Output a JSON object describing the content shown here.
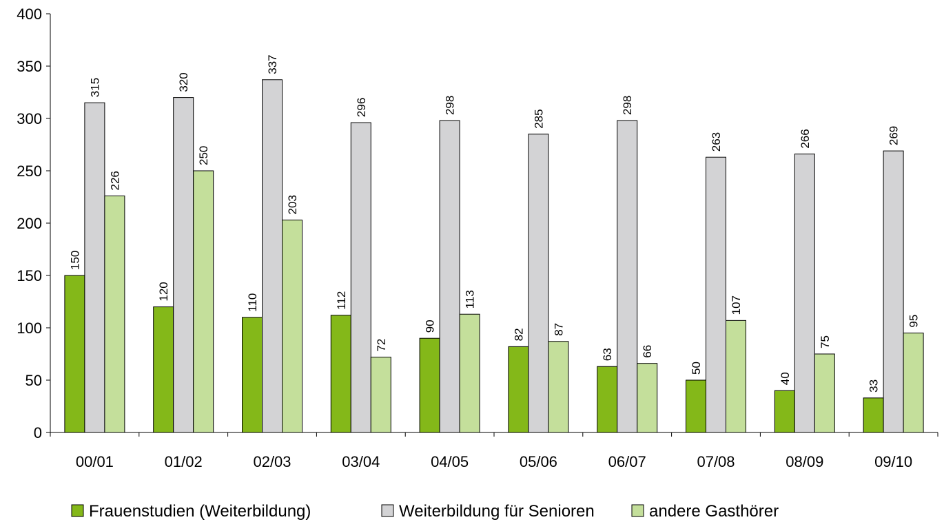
{
  "chart_data": {
    "type": "bar",
    "title": "",
    "xlabel": "",
    "ylabel": "",
    "categories": [
      "00/01",
      "01/02",
      "02/03",
      "03/04",
      "04/05",
      "05/06",
      "06/07",
      "07/08",
      "08/09",
      "09/10"
    ],
    "series": [
      {
        "name": "Frauenstudien (Weiterbildung)",
        "color": "#84b819",
        "values": [
          150,
          120,
          110,
          112,
          90,
          82,
          63,
          50,
          40,
          33
        ]
      },
      {
        "name": "Weiterbildung für Senioren",
        "color": "#d3d3d5",
        "values": [
          315,
          320,
          337,
          296,
          298,
          285,
          298,
          263,
          266,
          269
        ]
      },
      {
        "name": "andere Gasthörer",
        "color": "#c4df9b",
        "values": [
          226,
          250,
          203,
          72,
          113,
          87,
          66,
          107,
          75,
          95
        ]
      }
    ],
    "ylim": [
      0,
      400
    ],
    "yticks": [
      0,
      50,
      100,
      150,
      200,
      250,
      300,
      350,
      400
    ],
    "grid": false,
    "legend_position": "bottom",
    "data_labels": "vertical-above"
  }
}
